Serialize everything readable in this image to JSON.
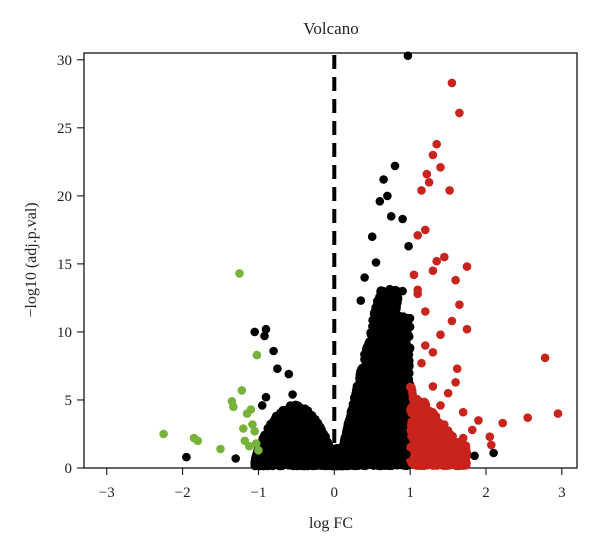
{
  "chart_data": {
    "type": "scatter",
    "title": "Volcano",
    "xlabel": "log FC",
    "ylabel": "−log10 (adj.p.val)",
    "xlim": [
      -3.3,
      3.2
    ],
    "ylim": [
      0,
      30.5
    ],
    "xticks": [
      -3,
      -2,
      -1,
      0,
      1,
      2,
      3
    ],
    "yticks": [
      0,
      5,
      10,
      15,
      20,
      25,
      30
    ],
    "grid": false,
    "legend": "none",
    "threshold_line": {
      "x": 0,
      "style": "dashed",
      "color": "#000000"
    },
    "colors": {
      "down": "#77b23a",
      "up": "#c8231c",
      "ns": "#000000"
    },
    "series": [
      {
        "color": "#77b23a",
        "points": [
          [
            -2.25,
            2.5
          ],
          [
            -1.85,
            2.2
          ],
          [
            -1.8,
            2.0
          ],
          [
            -1.5,
            1.4
          ],
          [
            -1.35,
            4.9
          ],
          [
            -1.33,
            4.5
          ],
          [
            -1.25,
            14.3
          ],
          [
            -1.22,
            5.7
          ],
          [
            -1.2,
            2.9
          ],
          [
            -1.18,
            2.0
          ],
          [
            -1.15,
            4.0
          ],
          [
            -1.12,
            1.6
          ],
          [
            -1.1,
            4.3
          ],
          [
            -1.08,
            3.2
          ],
          [
            -1.05,
            2.7
          ],
          [
            -1.03,
            1.8
          ],
          [
            -1.02,
            8.3
          ],
          [
            -1.0,
            1.3
          ]
        ]
      },
      {
        "color": "#c8231c",
        "points": [
          [
            1.55,
            28.3
          ],
          [
            1.65,
            26.1
          ],
          [
            1.35,
            23.8
          ],
          [
            1.3,
            23.0
          ],
          [
            1.4,
            22.1
          ],
          [
            1.22,
            21.6
          ],
          [
            1.25,
            21.0
          ],
          [
            1.15,
            20.4
          ],
          [
            1.52,
            20.4
          ],
          [
            1.2,
            17.5
          ],
          [
            1.1,
            17.1
          ],
          [
            1.45,
            15.5
          ],
          [
            1.35,
            15.2
          ],
          [
            1.75,
            14.8
          ],
          [
            1.3,
            14.5
          ],
          [
            1.6,
            13.8
          ],
          [
            1.65,
            12.0
          ],
          [
            1.55,
            10.8
          ],
          [
            1.75,
            10.2
          ],
          [
            1.4,
            9.8
          ],
          [
            1.2,
            9.0
          ],
          [
            1.15,
            7.7
          ],
          [
            2.78,
            8.1
          ],
          [
            2.22,
            3.3
          ],
          [
            2.55,
            3.7
          ],
          [
            2.95,
            4.0
          ],
          [
            2.05,
            2.3
          ],
          [
            2.07,
            1.7
          ],
          [
            1.82,
            2.8
          ],
          [
            1.7,
            4.1
          ],
          [
            1.9,
            3.5
          ],
          [
            1.6,
            6.3
          ],
          [
            1.5,
            5.5
          ],
          [
            1.3,
            6.0
          ],
          [
            1.1,
            5.0
          ],
          [
            1.25,
            4.0
          ],
          [
            1.45,
            3.2
          ],
          [
            1.35,
            2.5
          ],
          [
            1.15,
            2.1
          ],
          [
            1.05,
            3.0
          ],
          [
            1.2,
            11.5
          ],
          [
            1.1,
            12.8
          ],
          [
            1.05,
            14.2
          ],
          [
            1.1,
            13.1
          ],
          [
            1.3,
            8.5
          ],
          [
            1.62,
            7.3
          ],
          [
            1.4,
            4.6
          ],
          [
            1.7,
            2.2
          ]
        ]
      },
      {
        "color": "#000000",
        "points": [
          [
            -1.95,
            0.8
          ],
          [
            -1.3,
            0.7
          ],
          [
            -1.05,
            10.0
          ],
          [
            -0.9,
            10.2
          ],
          [
            -0.92,
            9.7
          ],
          [
            -0.8,
            8.6
          ],
          [
            -0.75,
            7.3
          ],
          [
            -0.6,
            6.9
          ],
          [
            -0.55,
            5.4
          ],
          [
            -0.9,
            5.2
          ],
          [
            -0.95,
            4.6
          ],
          [
            0.97,
            30.3
          ],
          [
            0.8,
            22.2
          ],
          [
            0.65,
            21.2
          ],
          [
            0.7,
            20.0
          ],
          [
            0.6,
            19.6
          ],
          [
            0.75,
            18.5
          ],
          [
            0.9,
            18.3
          ],
          [
            0.5,
            17.0
          ],
          [
            0.55,
            15.1
          ],
          [
            0.4,
            14.0
          ],
          [
            0.35,
            12.3
          ],
          [
            2.1,
            1.1
          ],
          [
            1.85,
            0.9
          ],
          [
            0.95,
            1.0
          ],
          [
            0.98,
            16.3
          ],
          [
            0.9,
            13.0
          ]
        ]
      }
    ],
    "density_clusters": [
      {
        "color": "#000000",
        "x_range": [
          -1.05,
          0.0
        ],
        "y_peak": 4.5,
        "count": 1400
      },
      {
        "color": "#000000",
        "x_range": [
          0.0,
          1.0
        ],
        "y_peak": 13.0,
        "count": 2600
      },
      {
        "color": "#c8231c",
        "x_range": [
          1.0,
          1.75
        ],
        "y_peak": 6.0,
        "count": 380
      }
    ]
  }
}
